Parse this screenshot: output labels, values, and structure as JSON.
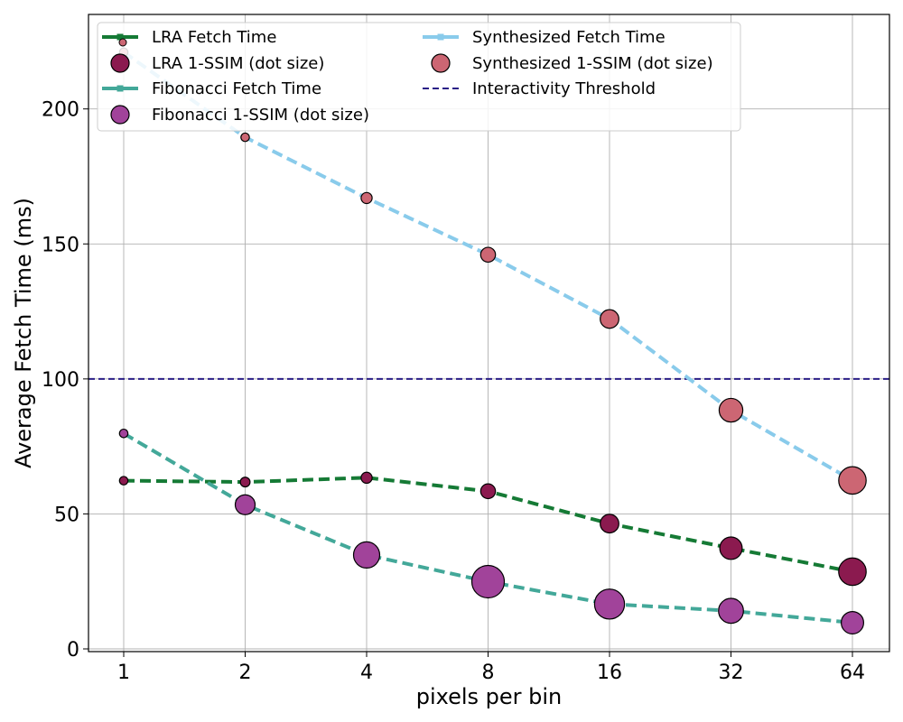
{
  "chart_data": {
    "type": "line",
    "title": "",
    "xlabel": "pixels per bin",
    "ylabel": "Average Fetch Time (ms)",
    "x_scale": "log2",
    "x": [
      1,
      2,
      4,
      8,
      16,
      32,
      64
    ],
    "xtick_labels": [
      "1",
      "2",
      "4",
      "8",
      "16",
      "32",
      "64"
    ],
    "ylim": [
      -1,
      235
    ],
    "yticks": [
      0,
      50,
      100,
      150,
      200
    ],
    "grid": true,
    "legend_position": "top-left",
    "series": [
      {
        "name": "LRA Fetch Time",
        "dot_name": "LRA 1-SSIM (dot size)",
        "line_color": "#157a35",
        "dot_color": "#8b1a4f",
        "values": [
          62.3,
          61.8,
          63.4,
          58.4,
          46.4,
          37.3,
          28.6
        ],
        "dot_size": [
          0.1,
          0.2,
          0.3,
          0.6,
          0.9,
          1.2,
          1.6
        ]
      },
      {
        "name": "Fibonacci Fetch Time",
        "dot_name": "Fibonacci 1-SSIM (dot size)",
        "line_color": "#43a899",
        "dot_color": "#a1439a",
        "values": [
          79.8,
          53.4,
          34.8,
          24.9,
          16.6,
          14.1,
          9.7
        ],
        "dot_size": [
          0.1,
          1.0,
          1.5,
          2.0,
          1.8,
          1.4,
          1.2
        ]
      },
      {
        "name": "Synthesized Fetch Time",
        "dot_name": "Synthesized 1-SSIM (dot size)",
        "line_color": "#89cbeb",
        "dot_color": "#cc6673",
        "values": [
          221.0,
          189.5,
          167.0,
          146.0,
          122.2,
          88.4,
          62.4
        ],
        "dot_size": [
          0.1,
          0.1,
          0.3,
          0.6,
          0.9,
          1.3,
          1.6
        ]
      }
    ],
    "threshold": {
      "name": "Interactivity Threshold",
      "value": 100,
      "color": "#2a1e86"
    }
  }
}
